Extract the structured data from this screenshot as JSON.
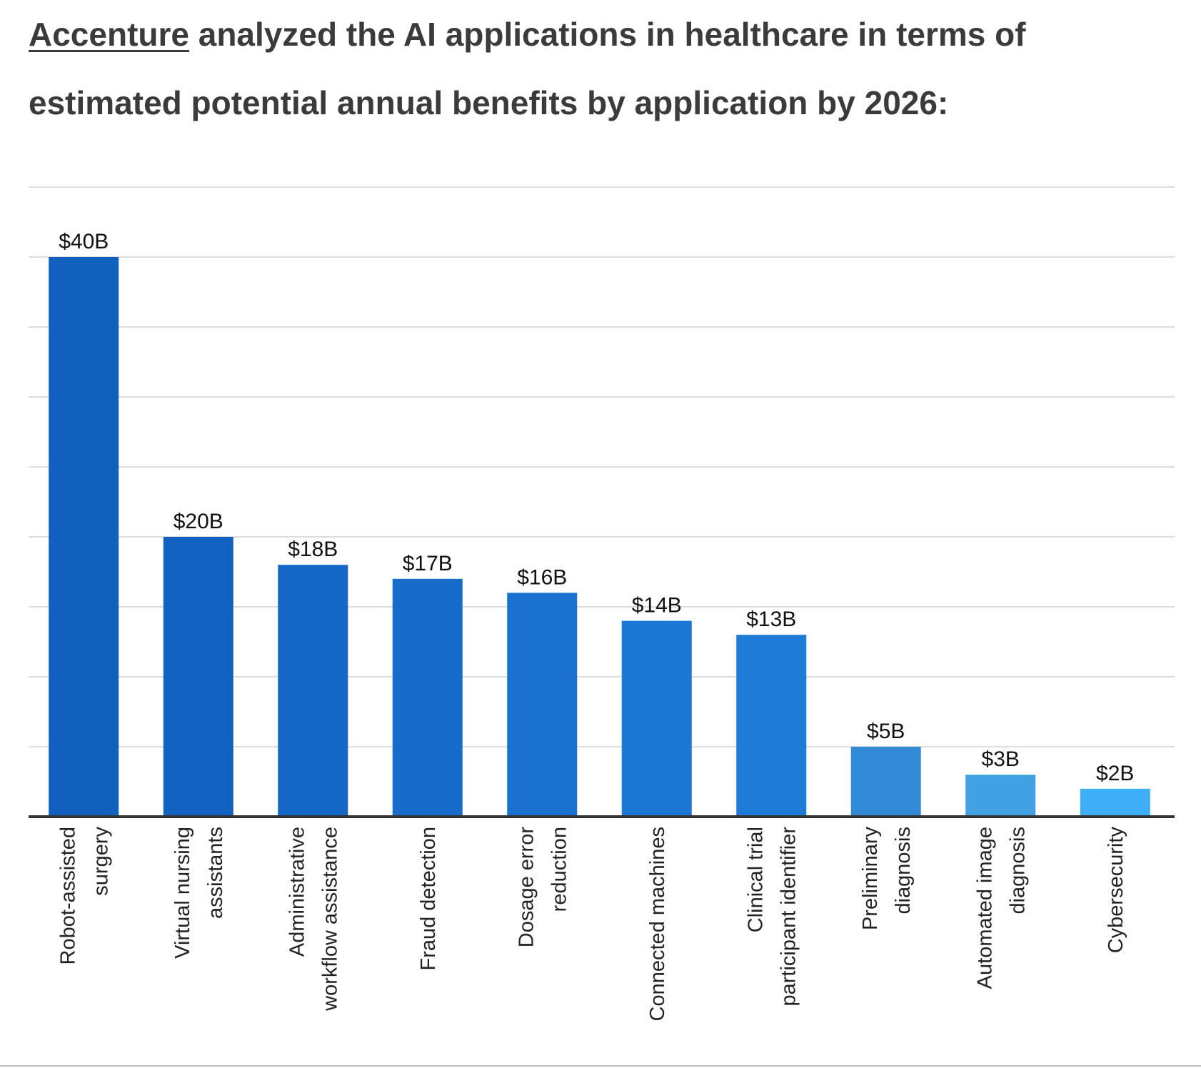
{
  "headline": {
    "link_text": "Accenture",
    "text": " analyzed the AI applications in healthcare in terms of estimated potential annual benefits by application by 2026:"
  },
  "chart_data": {
    "type": "bar",
    "categories": [
      [
        "Robot-assisted",
        "surgery"
      ],
      [
        "Virtual nursing",
        "assistants"
      ],
      [
        "Administrative",
        "workflow assistance"
      ],
      [
        "Fraud detection"
      ],
      [
        "Dosage error",
        "reduction"
      ],
      [
        "Connected machines"
      ],
      [
        "Clinical trial",
        "participant identifier"
      ],
      [
        "Preliminary",
        "diagnosis"
      ],
      [
        "Automated image",
        "diagnosis"
      ],
      [
        "Cybersecurity"
      ]
    ],
    "values": [
      40,
      20,
      18,
      17,
      16,
      14,
      13,
      5,
      3,
      2
    ],
    "value_labels": [
      "$40B",
      "$20B",
      "$18B",
      "$17B",
      "$16B",
      "$14B",
      "$13B",
      "$5B",
      "$3B",
      "$2B"
    ],
    "bar_colors": [
      "#1160bd",
      "#1263c1",
      "#1567c6",
      "#176cca",
      "#1a71cf",
      "#1c76d3",
      "#1e7bd7",
      "#338bd8",
      "#41a1e3",
      "#3eaef9"
    ],
    "ylim": [
      0,
      45
    ],
    "grid": true,
    "grid_color": "#dddddd",
    "axis_color": "#333333"
  }
}
